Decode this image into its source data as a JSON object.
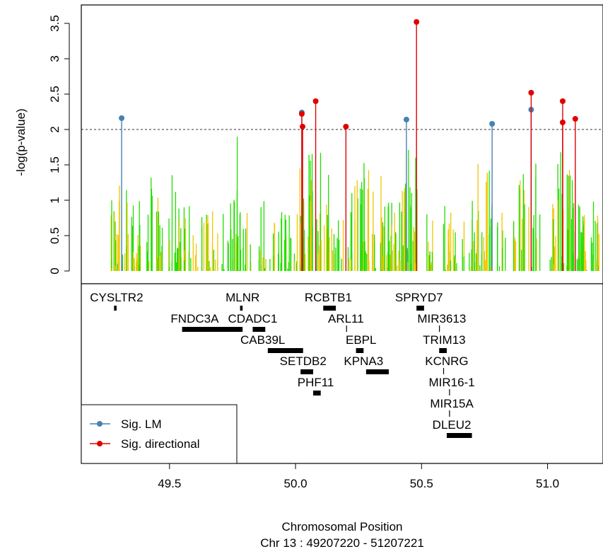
{
  "chart_data": {
    "type": "manhattan",
    "ylabel": "-log(p-value)",
    "xlabel": "Chromosomal Position",
    "xsublabel": "Chr 13 : 49207220 - 51207221",
    "xlim": [
      49.15,
      51.22
    ],
    "ylim": [
      0,
      3.6
    ],
    "x_ticks": [
      "49.5",
      "50.0",
      "50.5",
      "51.0"
    ],
    "y_ticks": [
      "0",
      "0.5",
      "1",
      "1.5",
      "2",
      "2.5",
      "3",
      "3.5"
    ],
    "threshold": 2,
    "series_colors": {
      "green": "#22dd00",
      "yellow": "#f2c500",
      "lm": "#4682b4",
      "directional": "#e00000"
    },
    "significant": [
      {
        "x": 49.31,
        "y": 2.16,
        "type": "lm"
      },
      {
        "x": 50.025,
        "y": 2.24,
        "type": "lm"
      },
      {
        "x": 50.025,
        "y": 2.22,
        "type": "directional"
      },
      {
        "x": 50.028,
        "y": 2.04,
        "type": "directional"
      },
      {
        "x": 50.08,
        "y": 2.4,
        "type": "directional"
      },
      {
        "x": 50.2,
        "y": 2.04,
        "type": "directional"
      },
      {
        "x": 50.44,
        "y": 2.14,
        "type": "lm"
      },
      {
        "x": 50.48,
        "y": 3.52,
        "type": "directional"
      },
      {
        "x": 50.78,
        "y": 2.08,
        "type": "lm"
      },
      {
        "x": 50.935,
        "y": 2.28,
        "type": "lm"
      },
      {
        "x": 50.935,
        "y": 2.52,
        "type": "directional"
      },
      {
        "x": 51.06,
        "y": 2.4,
        "type": "directional"
      },
      {
        "x": 51.06,
        "y": 2.1,
        "type": "directional"
      },
      {
        "x": 51.11,
        "y": 2.15,
        "type": "directional"
      }
    ],
    "genes": [
      {
        "name": "CYSLTR2",
        "start": 49.28,
        "end": 49.29,
        "row": 0,
        "label_x": 49.29
      },
      {
        "name": "MLNR",
        "start": 49.78,
        "end": 49.79,
        "row": 0,
        "label_x": 49.79
      },
      {
        "name": "RCBTB1",
        "start": 50.11,
        "end": 50.16,
        "row": 0,
        "label_x": 50.13
      },
      {
        "name": "SPRYD7",
        "start": 50.48,
        "end": 50.51,
        "row": 0,
        "label_x": 50.49
      },
      {
        "name": "FNDC3A",
        "start": 49.55,
        "end": 49.79,
        "row": 1,
        "label_x": 49.6
      },
      {
        "name": "CDADC1",
        "start": 49.83,
        "end": 49.88,
        "row": 1,
        "label_x": 49.83
      },
      {
        "name": "ARL11",
        "start": 50.2,
        "end": 50.205,
        "row": 1,
        "label_x": 50.2
      },
      {
        "name": "MIR3613",
        "start": 50.57,
        "end": 50.572,
        "row": 1,
        "label_x": 50.58
      },
      {
        "name": "CAB39L",
        "start": 49.89,
        "end": 50.03,
        "row": 2,
        "label_x": 49.87
      },
      {
        "name": "EBPL",
        "start": 50.24,
        "end": 50.27,
        "row": 2,
        "label_x": 50.26
      },
      {
        "name": "TRIM13",
        "start": 50.57,
        "end": 50.6,
        "row": 2,
        "label_x": 50.59
      },
      {
        "name": "SETDB2",
        "start": 50.02,
        "end": 50.07,
        "row": 3,
        "label_x": 50.03
      },
      {
        "name": "KPNA3",
        "start": 50.28,
        "end": 50.37,
        "row": 3,
        "label_x": 50.27
      },
      {
        "name": "KCNRG",
        "start": 50.585,
        "end": 50.59,
        "row": 3,
        "label_x": 50.6
      },
      {
        "name": "PHF11",
        "start": 50.07,
        "end": 50.1,
        "row": 4,
        "label_x": 50.08
      },
      {
        "name": "MIR16-1",
        "start": 50.61,
        "end": 50.612,
        "row": 4,
        "label_x": 50.62
      },
      {
        "name": "MIR15A",
        "start": 50.61,
        "end": 50.612,
        "row": 5,
        "label_x": 50.62
      },
      {
        "name": "DLEU2",
        "start": 50.6,
        "end": 50.7,
        "row": 6,
        "label_x": 50.62
      }
    ],
    "legend": {
      "position": "bottom-left",
      "items": [
        "Sig. LM",
        "Sig. directional"
      ]
    }
  }
}
